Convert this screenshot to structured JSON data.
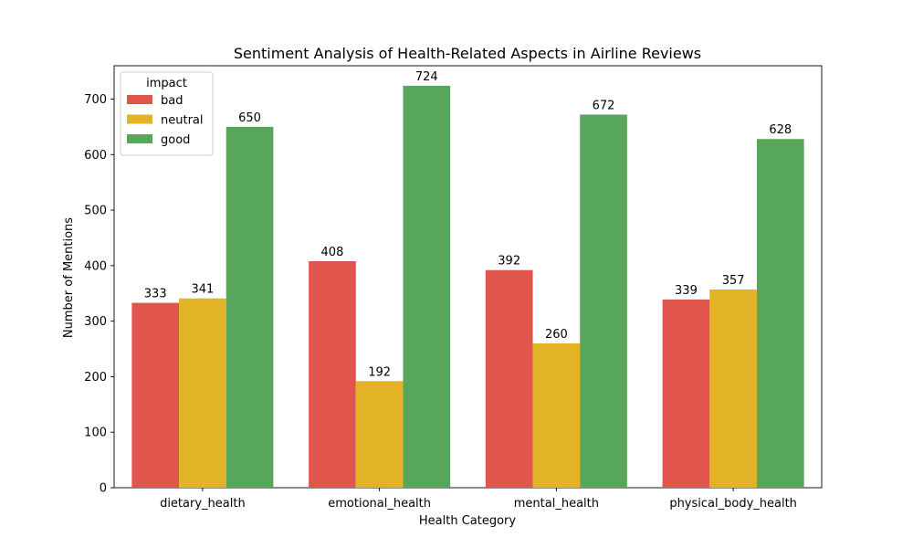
{
  "chart_data": {
    "type": "bar",
    "title": "Sentiment Analysis of Health-Related Aspects in Airline Reviews",
    "xlabel": "Health Category",
    "ylabel": "Number of Mentions",
    "categories": [
      "dietary_health",
      "emotional_health",
      "mental_health",
      "physical_body_health"
    ],
    "series": [
      {
        "name": "bad",
        "color": "#e0564d",
        "values": [
          333,
          408,
          392,
          339
        ]
      },
      {
        "name": "neutral",
        "color": "#e2b227",
        "values": [
          341,
          192,
          260,
          357
        ]
      },
      {
        "name": "good",
        "color": "#58a55c",
        "values": [
          650,
          724,
          672,
          628
        ]
      }
    ],
    "ylim": [
      0,
      760
    ],
    "yticks": [
      0,
      100,
      200,
      300,
      400,
      500,
      600,
      700
    ],
    "legend": {
      "title": "impact",
      "position": "top-left"
    },
    "grid": false
  }
}
